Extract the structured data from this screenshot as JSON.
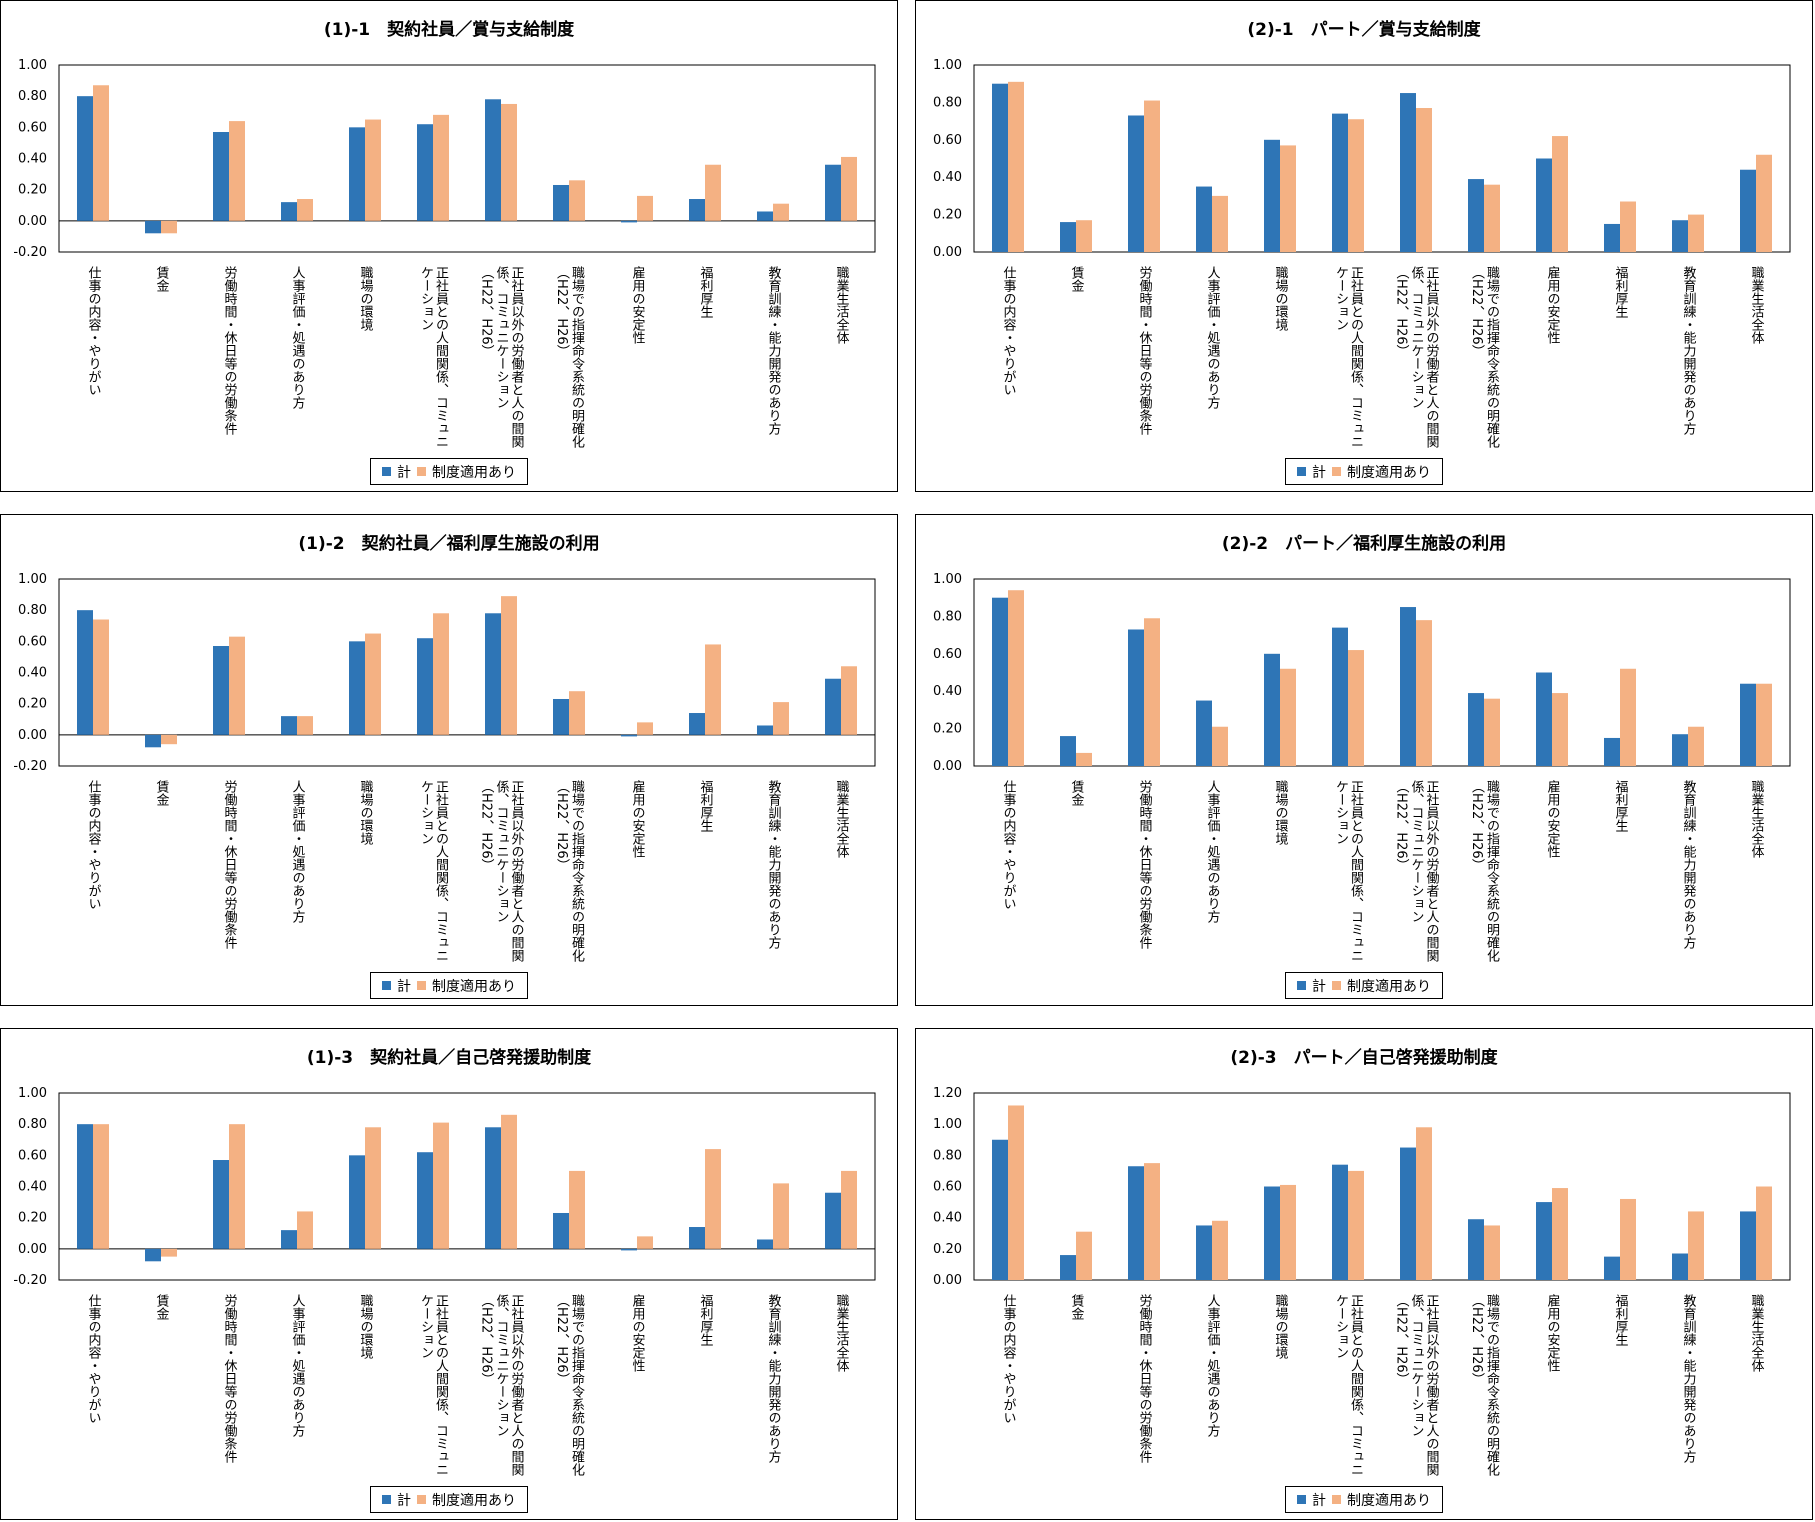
{
  "legend": {
    "series1": "計",
    "series2": "制度適用あり"
  },
  "colors": {
    "series1": "#2e75b6",
    "series2": "#f4b183"
  },
  "categories": [
    [
      "仕事の内容・やりがい"
    ],
    [
      "賃金"
    ],
    [
      "労働時間・休日等の労働条件"
    ],
    [
      "人事評価・処遇のあり方"
    ],
    [
      "職場の環境"
    ],
    [
      "正社員との人間関係、コミュニ",
      "ケーション"
    ],
    [
      "正社員以外の労働者と人の間関",
      "係、コミュニケーション",
      "（H22、H26）"
    ],
    [
      "職場での指揮命令系統の明確化",
      "（H22、H26）"
    ],
    [
      "雇用の安定性"
    ],
    [
      "福利厚生"
    ],
    [
      "教育訓練・能力開発のあり方"
    ],
    [
      "職業生活全体"
    ]
  ],
  "chart_data": [
    {
      "type": "bar",
      "title": "(1)-1　契約社員／賞与支給制度",
      "ylim": [
        -0.2,
        1.0
      ],
      "yticks": [
        "1.00",
        "0.80",
        "0.60",
        "0.40",
        "0.20",
        "0.00",
        "-0.20"
      ],
      "series": [
        {
          "name": "計",
          "values": [
            0.8,
            -0.08,
            0.57,
            0.12,
            0.6,
            0.62,
            0.78,
            0.23,
            -0.01,
            0.14,
            0.06,
            0.36
          ]
        },
        {
          "name": "制度適用あり",
          "values": [
            0.87,
            -0.08,
            0.64,
            0.14,
            0.65,
            0.68,
            0.75,
            0.26,
            0.16,
            0.36,
            0.11,
            0.41
          ]
        }
      ]
    },
    {
      "type": "bar",
      "title": "(2)-1　パート／賞与支給制度",
      "ylim": [
        0.0,
        1.0
      ],
      "yticks": [
        "1.00",
        "0.80",
        "0.60",
        "0.40",
        "0.20",
        "0.00"
      ],
      "series": [
        {
          "name": "計",
          "values": [
            0.9,
            0.16,
            0.73,
            0.35,
            0.6,
            0.74,
            0.85,
            0.39,
            0.5,
            0.15,
            0.17,
            0.44
          ]
        },
        {
          "name": "制度適用あり",
          "values": [
            0.91,
            0.17,
            0.81,
            0.3,
            0.57,
            0.71,
            0.77,
            0.36,
            0.62,
            0.27,
            0.2,
            0.52
          ]
        }
      ]
    },
    {
      "type": "bar",
      "title": "(1)-2　契約社員／福利厚生施設の利用",
      "ylim": [
        -0.2,
        1.0
      ],
      "yticks": [
        "1.00",
        "0.80",
        "0.60",
        "0.40",
        "0.20",
        "0.00",
        "-0.20"
      ],
      "series": [
        {
          "name": "計",
          "values": [
            0.8,
            -0.08,
            0.57,
            0.12,
            0.6,
            0.62,
            0.78,
            0.23,
            -0.01,
            0.14,
            0.06,
            0.36
          ]
        },
        {
          "name": "制度適用あり",
          "values": [
            0.74,
            -0.06,
            0.63,
            0.12,
            0.65,
            0.78,
            0.89,
            0.28,
            0.08,
            0.58,
            0.21,
            0.44
          ]
        }
      ]
    },
    {
      "type": "bar",
      "title": "(2)-2　パート／福利厚生施設の利用",
      "ylim": [
        0.0,
        1.0
      ],
      "yticks": [
        "1.00",
        "0.80",
        "0.60",
        "0.40",
        "0.20",
        "0.00"
      ],
      "series": [
        {
          "name": "計",
          "values": [
            0.9,
            0.16,
            0.73,
            0.35,
            0.6,
            0.74,
            0.85,
            0.39,
            0.5,
            0.15,
            0.17,
            0.44
          ]
        },
        {
          "name": "制度適用あり",
          "values": [
            0.94,
            0.07,
            0.79,
            0.21,
            0.52,
            0.62,
            0.78,
            0.36,
            0.39,
            0.52,
            0.21,
            0.44
          ]
        }
      ]
    },
    {
      "type": "bar",
      "title": "(1)-3　契約社員／自己啓発援助制度",
      "ylim": [
        -0.2,
        1.0
      ],
      "yticks": [
        "1.00",
        "0.80",
        "0.60",
        "0.40",
        "0.20",
        "0.00",
        "-0.20"
      ],
      "series": [
        {
          "name": "計",
          "values": [
            0.8,
            -0.08,
            0.57,
            0.12,
            0.6,
            0.62,
            0.78,
            0.23,
            -0.01,
            0.14,
            0.06,
            0.36
          ]
        },
        {
          "name": "制度適用あり",
          "values": [
            0.8,
            -0.05,
            0.8,
            0.24,
            0.78,
            0.81,
            0.86,
            0.5,
            0.08,
            0.64,
            0.42,
            0.5
          ]
        }
      ]
    },
    {
      "type": "bar",
      "title": "(2)-3　パート／自己啓発援助制度",
      "ylim": [
        0.0,
        1.2
      ],
      "yticks": [
        "1.20",
        "1.00",
        "0.80",
        "0.60",
        "0.40",
        "0.20",
        "0.00"
      ],
      "series": [
        {
          "name": "計",
          "values": [
            0.9,
            0.16,
            0.73,
            0.35,
            0.6,
            0.74,
            0.85,
            0.39,
            0.5,
            0.15,
            0.17,
            0.44
          ]
        },
        {
          "name": "制度適用あり",
          "values": [
            1.12,
            0.31,
            0.75,
            0.38,
            0.61,
            0.7,
            0.98,
            0.35,
            0.59,
            0.52,
            0.44,
            0.6
          ]
        }
      ]
    }
  ]
}
